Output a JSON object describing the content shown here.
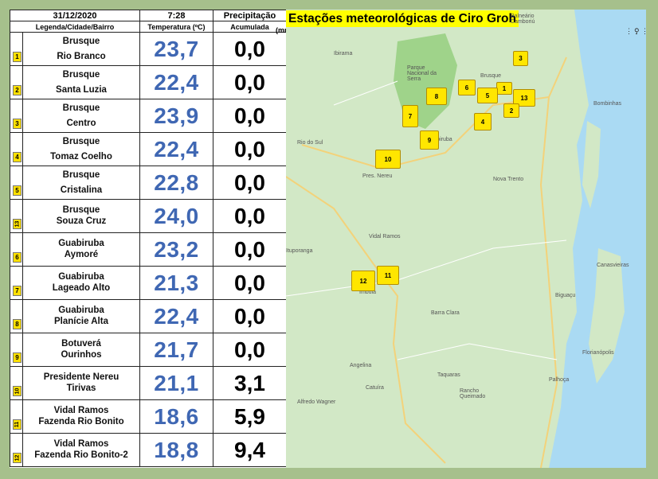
{
  "header": {
    "date": "31/12/2020",
    "time": "7:28",
    "precip_label": "Precipitação",
    "unit": "(mm)",
    "col_location": "Legenda/Cidade/Bairro",
    "col_temp": "Temperatura (ºC)",
    "col_precip": "Acumulada"
  },
  "rows": [
    {
      "badge": "1",
      "city": "Brusque",
      "district": "Rio Branco",
      "temp": "23,7",
      "precip": "0,0"
    },
    {
      "badge": "2",
      "city": "Brusque",
      "district": "Santa Luzia",
      "temp": "22,4",
      "precip": "0,0"
    },
    {
      "badge": "3",
      "city": "Brusque",
      "district": "Centro",
      "temp": "23,9",
      "precip": "0,0"
    },
    {
      "badge": "4",
      "city": "Brusque",
      "district": "Tomaz Coelho",
      "temp": "22,4",
      "precip": "0,0"
    },
    {
      "badge": "5",
      "city": "Brusque",
      "district": "Cristalina",
      "temp": "22,8",
      "precip": "0,0"
    },
    {
      "badge": "13",
      "city": "Brusque",
      "district": "Souza Cruz",
      "temp": "24,0",
      "precip": "0,0"
    },
    {
      "badge": "6",
      "city": "Guabiruba",
      "district": "Aymoré",
      "temp": "23,2",
      "precip": "0,0"
    },
    {
      "badge": "7",
      "city": "Guabiruba",
      "district": "Lageado Alto",
      "temp": "21,3",
      "precip": "0,0"
    },
    {
      "badge": "8",
      "city": "Guabiruba",
      "district": "Planície Alta",
      "temp": "22,4",
      "precip": "0,0"
    },
    {
      "badge": "9",
      "city": "Botuverá",
      "district": "Ourinhos",
      "temp": "21,7",
      "precip": "0,0"
    },
    {
      "badge": "10",
      "city": "Presidente Nereu",
      "district": "Tirivas",
      "temp": "21,1",
      "precip": "3,1"
    },
    {
      "badge": "11",
      "city": "Vidal Ramos",
      "district": "Fazenda Rio Bonito",
      "temp": "18,6",
      "precip": "5,9"
    },
    {
      "badge": "12",
      "city": "Vidal Ramos",
      "district": "Fazenda Rio Bonito-2",
      "temp": "18,8",
      "precip": "9,4"
    }
  ],
  "map": {
    "title": "Estações meteorológicas de Ciro Groh",
    "markers": [
      "1",
      "2",
      "3",
      "4",
      "5",
      "6",
      "7",
      "8",
      "9",
      "10",
      "11",
      "12",
      "13"
    ],
    "places": [
      "Balneário Camboriú",
      "Ibirama",
      "Parque Nacional da Serra",
      "Rio do Sul",
      "Pres. Nereu",
      "Guabiruba",
      "Brusque",
      "Bombinhas",
      "Vidal Ramos",
      "Nova Trento",
      "Ituporanga",
      "Imbuia",
      "Barra Clara",
      "Biguaçu",
      "Canasvieiras",
      "Florianópolis",
      "Angelina",
      "Alfredo Wagner",
      "Taquaras",
      "Rancho Queimado",
      "Palhoça",
      "Catuíra"
    ],
    "menu_icon": "grid-icon",
    "pin_icon": "pin-icon",
    "more_icon": "more-icon"
  }
}
